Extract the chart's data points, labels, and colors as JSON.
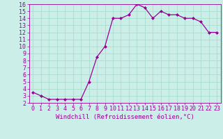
{
  "x": [
    0,
    1,
    2,
    3,
    4,
    5,
    6,
    7,
    8,
    9,
    10,
    11,
    12,
    13,
    14,
    15,
    16,
    17,
    18,
    19,
    20,
    21,
    22,
    23
  ],
  "y": [
    3.5,
    3.0,
    2.5,
    2.5,
    2.5,
    2.5,
    2.5,
    5.0,
    8.5,
    10.0,
    14.0,
    14.0,
    14.5,
    16.0,
    15.5,
    14.0,
    15.0,
    14.5,
    14.5,
    14.0,
    14.0,
    13.5,
    12.0,
    12.0
  ],
  "line_color": "#990099",
  "marker": "D",
  "marker_size": 2.0,
  "bg_color": "#cceee8",
  "grid_color": "#aaddcc",
  "xlabel": "Windchill (Refroidissement éolien,°C)",
  "xlabel_fontsize": 6.5,
  "tick_fontsize": 6.0,
  "ylim": [
    2,
    16
  ],
  "xlim": [
    -0.5,
    23.5
  ],
  "yticks": [
    2,
    3,
    4,
    5,
    6,
    7,
    8,
    9,
    10,
    11,
    12,
    13,
    14,
    15,
    16
  ],
  "xticks": [
    0,
    1,
    2,
    3,
    4,
    5,
    6,
    7,
    8,
    9,
    10,
    11,
    12,
    13,
    14,
    15,
    16,
    17,
    18,
    19,
    20,
    21,
    22,
    23
  ],
  "figsize": [
    3.2,
    2.0
  ],
  "dpi": 100
}
